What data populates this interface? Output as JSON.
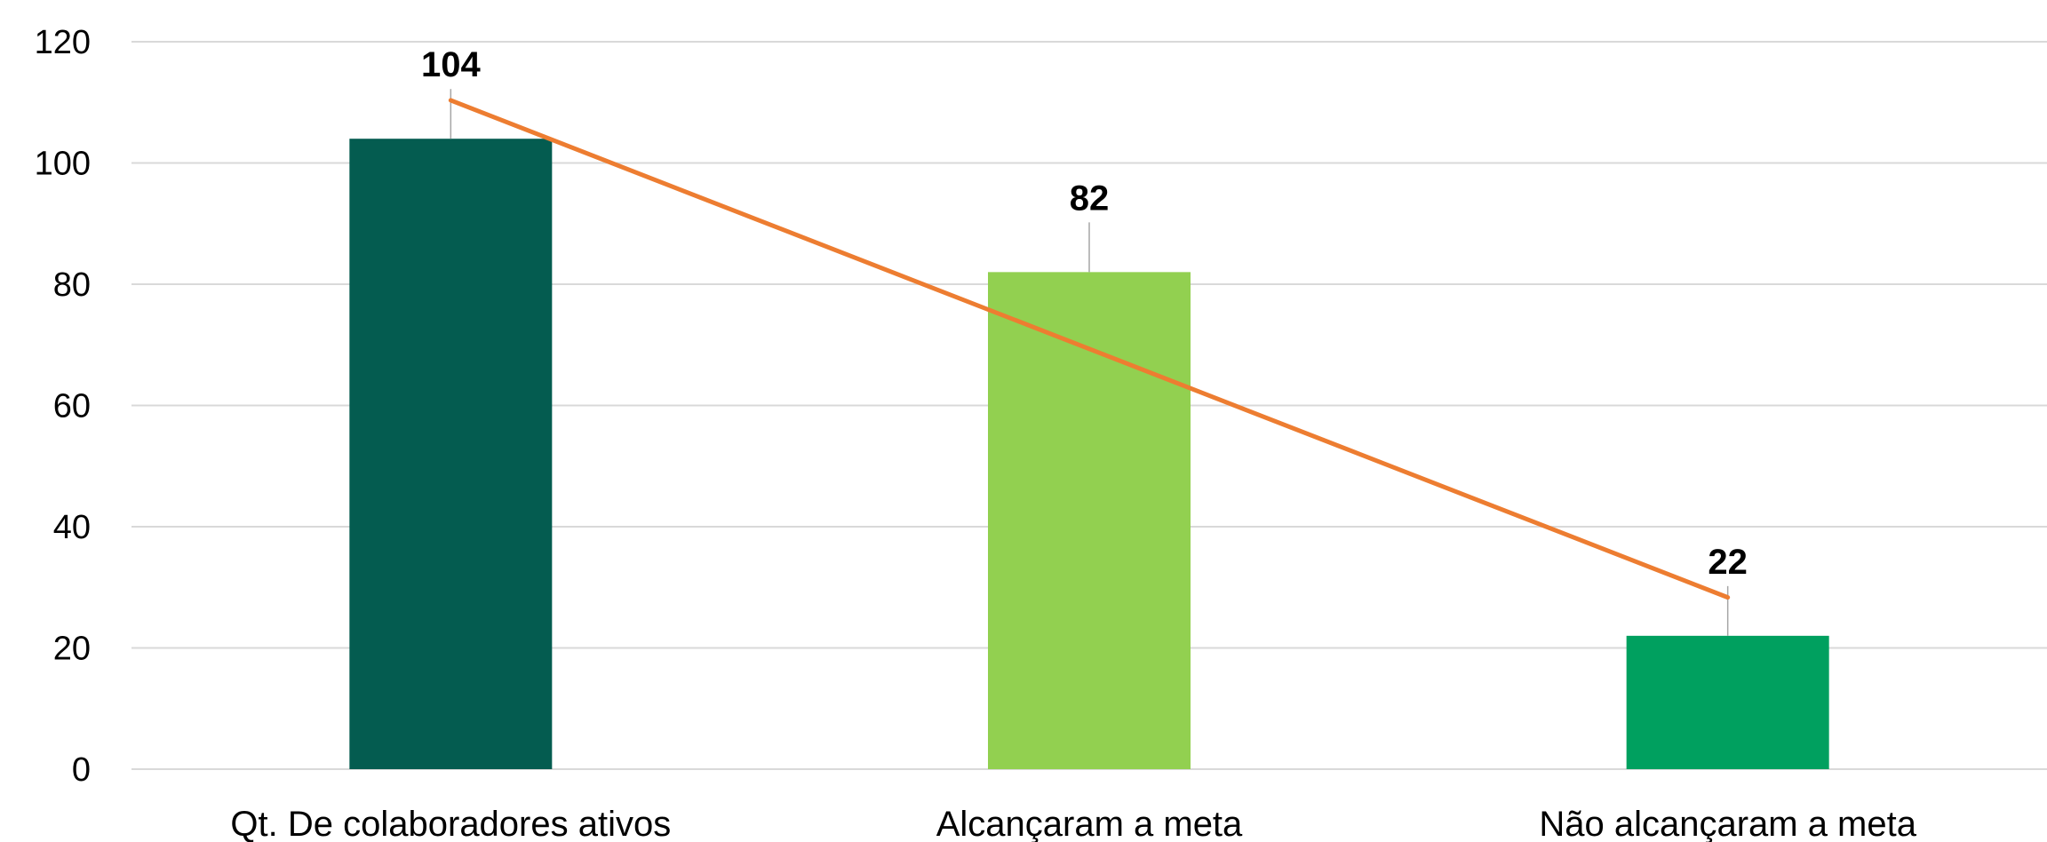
{
  "chart_data": {
    "type": "bar",
    "categories": [
      "Qt. De colaboradores ativos",
      "Alcançaram a meta",
      "Não alcançaram a meta"
    ],
    "series": [
      {
        "values": [
          104,
          82,
          22
        ]
      }
    ],
    "trendline": {
      "type": "linear",
      "color": "#ed7d31"
    },
    "bar_colors": [
      "#045c50",
      "#92d050",
      "#00a05f"
    ],
    "data_labels": [
      "104",
      "82",
      "22"
    ],
    "ylim": [
      0,
      120
    ],
    "yticks": [
      0,
      20,
      40,
      60,
      80,
      100,
      120
    ],
    "grid": true,
    "legend": "none",
    "title": "",
    "xlabel": "",
    "ylabel": ""
  }
}
